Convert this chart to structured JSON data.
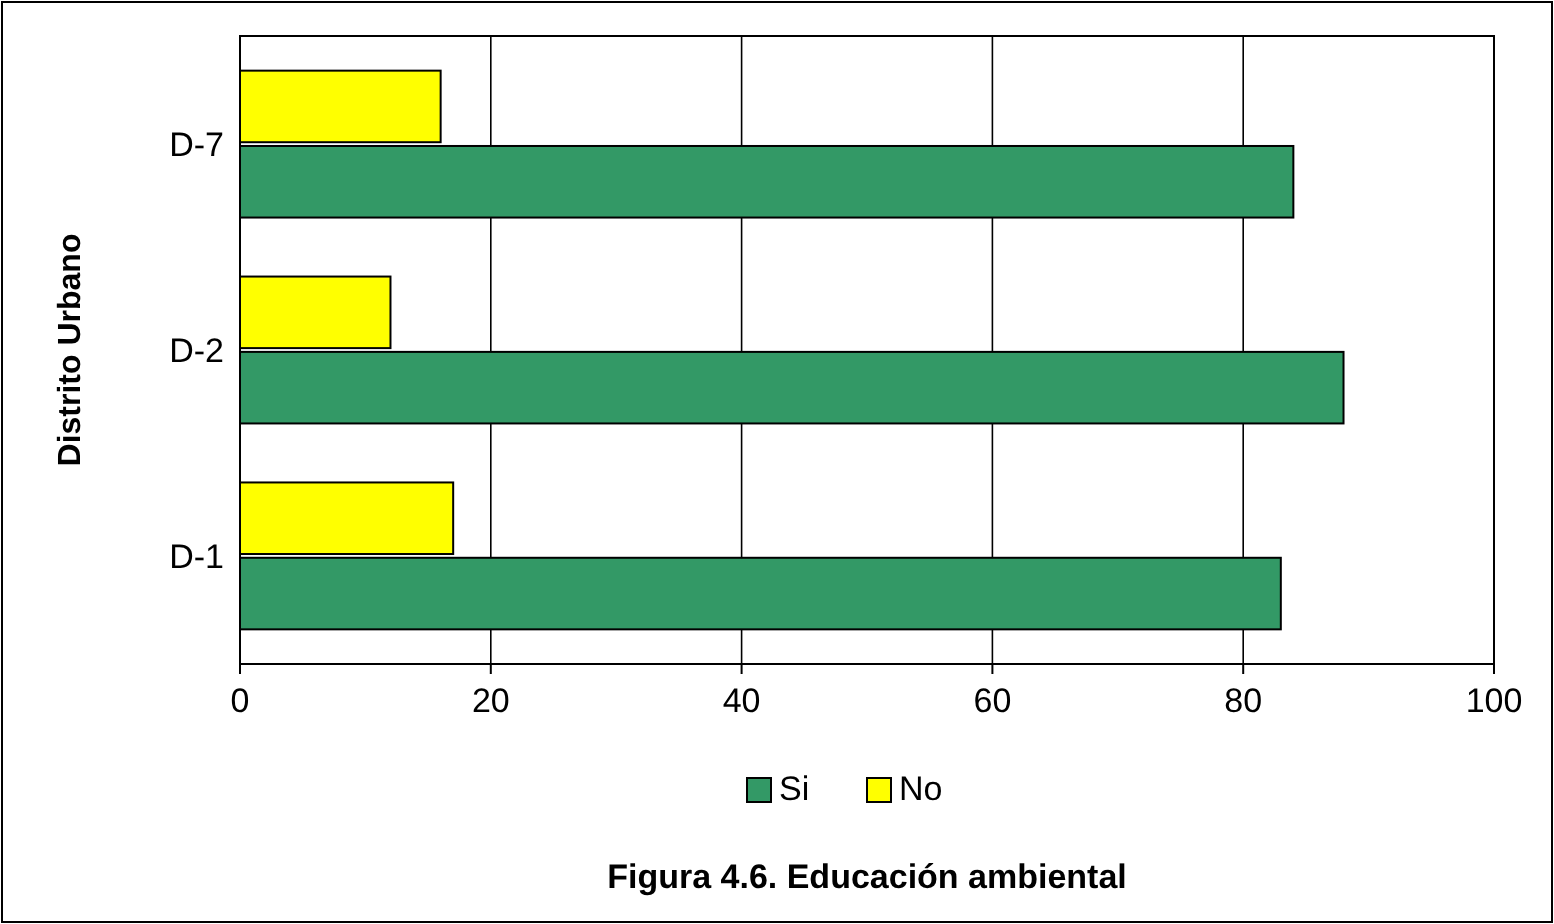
{
  "chart_data": {
    "type": "bar",
    "orientation": "horizontal",
    "title": "Figura 4.6. Educación ambiental",
    "ylabel": "Distrito Urbano",
    "categories": [
      "D-7",
      "D-2",
      "D-1"
    ],
    "series": [
      {
        "name": "Si",
        "color": "#339966",
        "values": [
          84,
          88,
          83
        ]
      },
      {
        "name": "No",
        "color": "#ffff00",
        "values": [
          16,
          12,
          17
        ]
      }
    ],
    "xlim": [
      0,
      100
    ],
    "xticks": [
      0,
      20,
      40,
      60,
      80,
      100
    ],
    "grid": "x",
    "legend": "bottom"
  }
}
